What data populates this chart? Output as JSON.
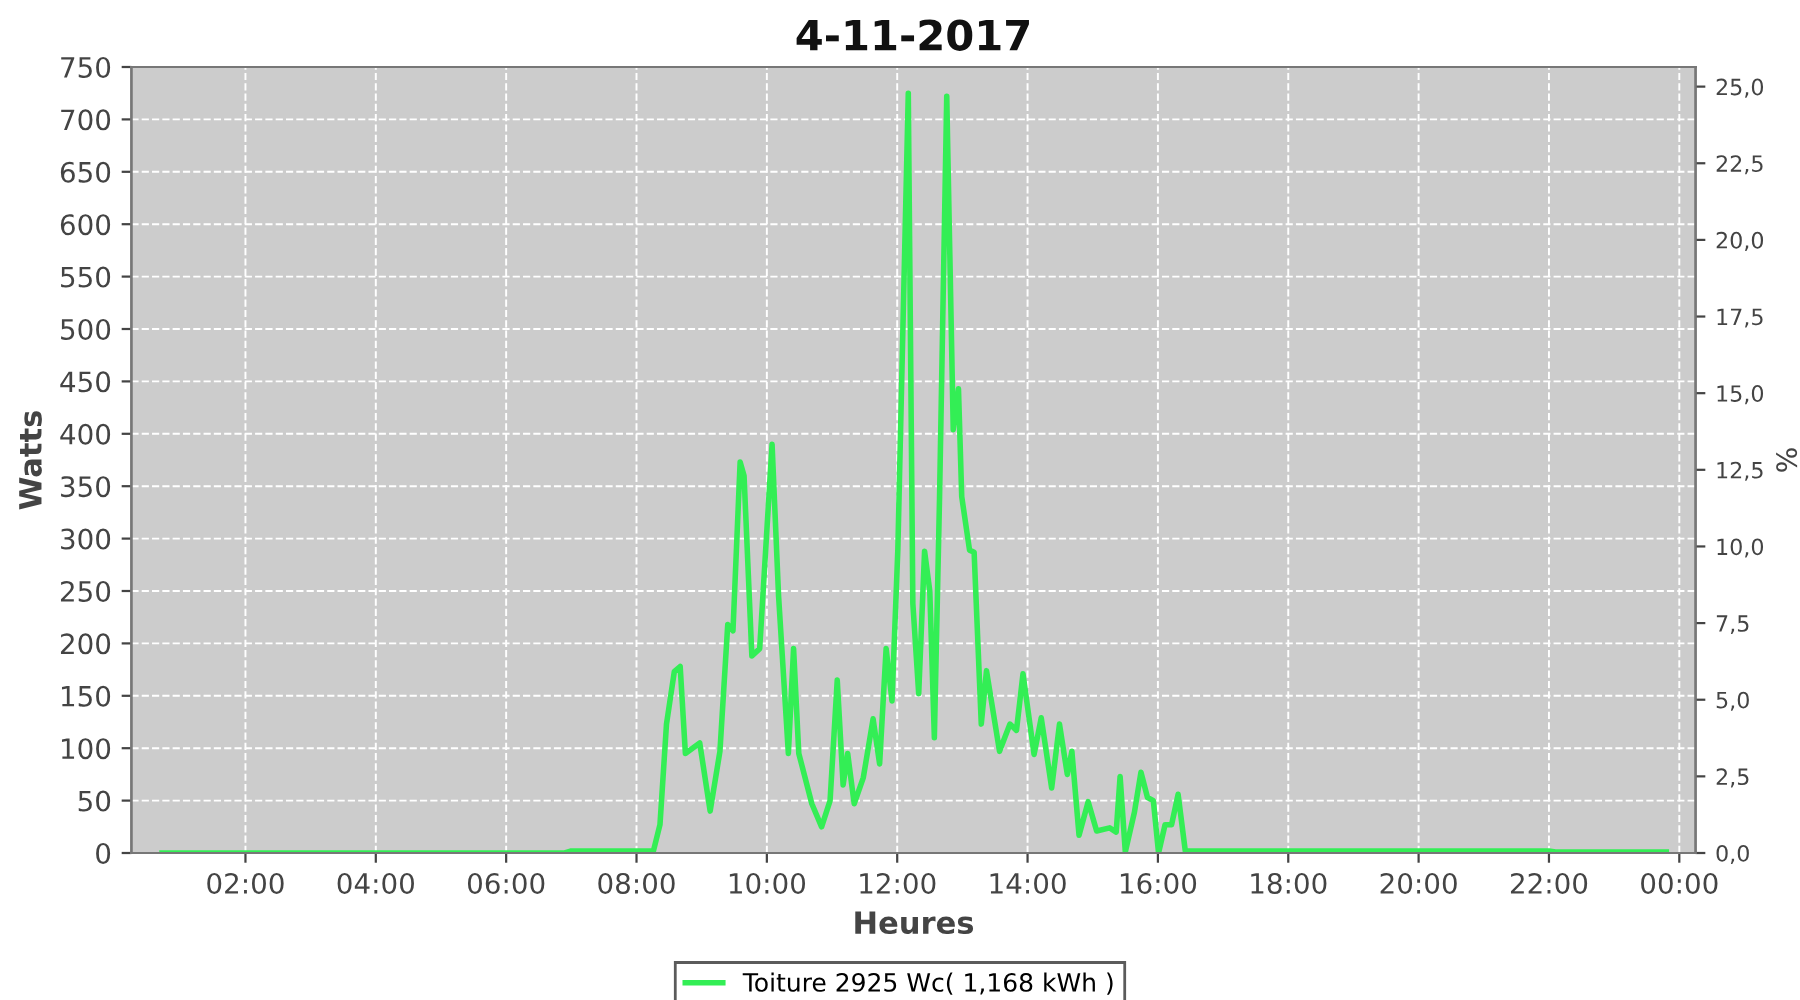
{
  "chart_data": {
    "type": "line",
    "title": "4-11-2017",
    "xlabel": "Heures",
    "ylabel": "Watts",
    "y2label": "%",
    "xlim": [
      0.25,
      24.25
    ],
    "xticks": [
      {
        "value": 2,
        "label": "02:00"
      },
      {
        "value": 4,
        "label": "04:00"
      },
      {
        "value": 6,
        "label": "06:00"
      },
      {
        "value": 8,
        "label": "08:00"
      },
      {
        "value": 10,
        "label": "10:00"
      },
      {
        "value": 12,
        "label": "12:00"
      },
      {
        "value": 14,
        "label": "14:00"
      },
      {
        "value": 16,
        "label": "16:00"
      },
      {
        "value": 18,
        "label": "18:00"
      },
      {
        "value": 20,
        "label": "20:00"
      },
      {
        "value": 22,
        "label": "22:00"
      },
      {
        "value": 24,
        "label": "00:00"
      }
    ],
    "ylim": [
      0,
      750
    ],
    "yticks": [
      0,
      50,
      100,
      150,
      200,
      250,
      300,
      350,
      400,
      450,
      500,
      550,
      600,
      650,
      700,
      750
    ],
    "y2lim": [
      0,
      25.64
    ],
    "y2ticks": [
      {
        "value": 0,
        "label": "0,0"
      },
      {
        "value": 2.5,
        "label": "2,5"
      },
      {
        "value": 5,
        "label": "5,0"
      },
      {
        "value": 7.5,
        "label": "7,5"
      },
      {
        "value": 10,
        "label": "10,0"
      },
      {
        "value": 12.5,
        "label": "12,5"
      },
      {
        "value": 15,
        "label": "15,0"
      },
      {
        "value": 17.5,
        "label": "17,5"
      },
      {
        "value": 20,
        "label": "20,0"
      },
      {
        "value": 22.5,
        "label": "22,5"
      },
      {
        "value": 25,
        "label": "25,0"
      }
    ],
    "grid": true,
    "legend": "bottom",
    "marker": "none",
    "line_style": "solid",
    "series": [
      {
        "name": "Toiture 2925 Wc( 1,168 kWh )",
        "color": "#33ee55",
        "x": [
          0.72,
          3.0,
          6.9,
          7.0,
          8.2,
          8.26,
          8.36,
          8.46,
          8.58,
          8.67,
          8.75,
          8.97,
          9.13,
          9.28,
          9.4,
          9.48,
          9.59,
          9.65,
          9.77,
          9.89,
          10.08,
          10.18,
          10.33,
          10.41,
          10.49,
          10.69,
          10.84,
          10.97,
          11.08,
          11.17,
          11.24,
          11.34,
          11.48,
          11.63,
          11.73,
          11.83,
          11.92,
          12.01,
          12.17,
          12.24,
          12.33,
          12.42,
          12.5,
          12.57,
          12.65,
          12.76,
          12.86,
          12.94,
          12.99,
          13.11,
          13.18,
          13.29,
          13.37,
          13.57,
          13.73,
          13.83,
          13.93,
          14.1,
          14.21,
          14.37,
          14.49,
          14.61,
          14.68,
          14.79,
          14.93,
          15.06,
          15.26,
          15.36,
          15.42,
          15.5,
          15.64,
          15.74,
          15.84,
          15.93,
          16.01,
          16.11,
          16.21,
          16.31,
          16.42,
          22.0,
          22.1,
          23.8
        ],
        "values": [
          0,
          0,
          0,
          2,
          2,
          2,
          27,
          123,
          173,
          178,
          95,
          105,
          40,
          97,
          218,
          212,
          373,
          360,
          188,
          195,
          390,
          245,
          95,
          195,
          95,
          47,
          25,
          50,
          165,
          65,
          95,
          47,
          72,
          128,
          85,
          195,
          145,
          290,
          725,
          238,
          152,
          288,
          250,
          110,
          340,
          722,
          404,
          443,
          340,
          289,
          287,
          123,
          174,
          97,
          123,
          117,
          171,
          94,
          129,
          62,
          123,
          75,
          97,
          17,
          49,
          21,
          24,
          20,
          73,
          1,
          39,
          77,
          53,
          50,
          0,
          27,
          27,
          56,
          2,
          2,
          1,
          1
        ]
      }
    ]
  }
}
